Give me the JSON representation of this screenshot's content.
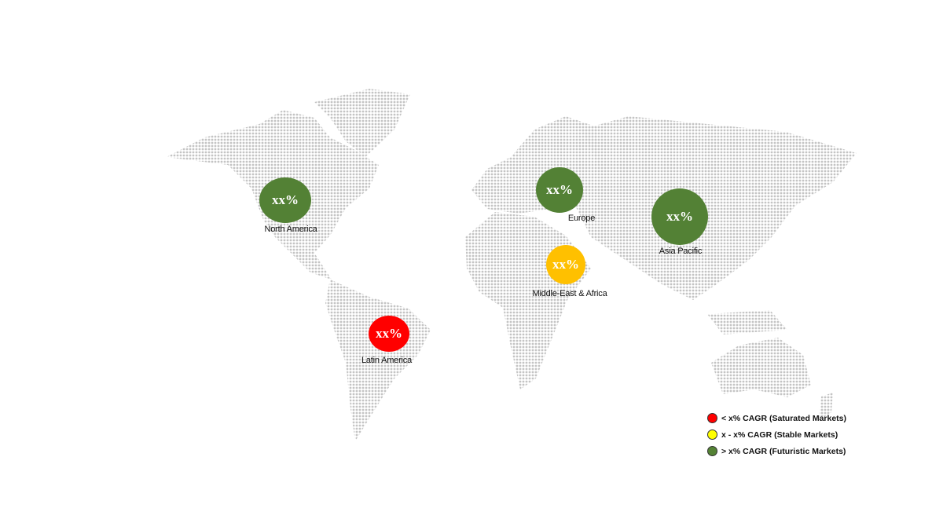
{
  "map": {
    "dot_color": "#c4c4c4",
    "regions": [
      {
        "name": "North America",
        "value": "xx%",
        "color": "#538135"
      },
      {
        "name": "Europe",
        "value": "xx%",
        "color": "#538135"
      },
      {
        "name": "Asia Pacific",
        "value": "xx%",
        "color": "#538135"
      },
      {
        "name": "Middle-East & Africa",
        "value": "xx%",
        "color": "#ffc000"
      },
      {
        "name": "Latin America",
        "value": "xx%",
        "color": "#ff0000"
      }
    ]
  },
  "legend": [
    {
      "label": "< x% CAGR (Saturated Markets)",
      "color": "#ff0000"
    },
    {
      "label": "x - x% CAGR (Stable Markets)",
      "color": "#ffff00"
    },
    {
      "label": "> x% CAGR (Futuristic Markets)",
      "color": "#548235"
    }
  ]
}
